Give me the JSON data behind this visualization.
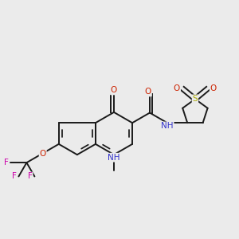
{
  "bg_color": "#ebebeb",
  "bond_color": "#1a1a1a",
  "bond_width": 1.4,
  "atom_colors": {
    "C": "#1a1a1a",
    "N": "#3333cc",
    "O": "#cc2200",
    "F": "#cc00aa",
    "S": "#aaaa00",
    "H": "#1a1a1a"
  },
  "font_size": 7.5,
  "figsize": [
    3.0,
    3.0
  ],
  "dpi": 100
}
